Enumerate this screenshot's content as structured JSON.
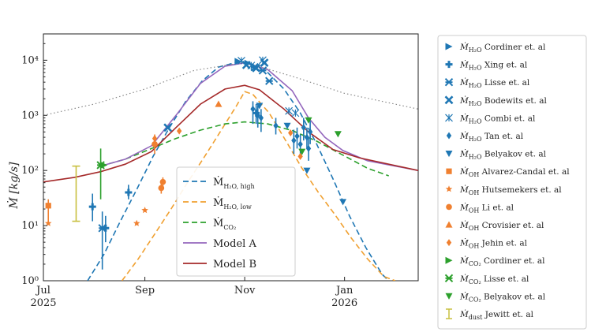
{
  "chart_data": {
    "type": "scatter",
    "title": "",
    "xlabel": "",
    "ylabel": "Ṁ [kg/s]",
    "xlim": [
      "2025-07-01",
      "2026-02-15"
    ],
    "ylim": [
      1,
      30000
    ],
    "yscale": "log",
    "x_ticks": [
      {
        "date": "2025-07-01",
        "line1": "Jul",
        "line2": "2025"
      },
      {
        "date": "2025-09-01",
        "line1": "Sep",
        "line2": ""
      },
      {
        "date": "2025-11-01",
        "line1": "Nov",
        "line2": ""
      },
      {
        "date": "2026-01-01",
        "line1": "Jan",
        "line2": "2026"
      }
    ],
    "y_ticks": [
      {
        "value": 1,
        "label": "10⁰"
      },
      {
        "value": 10,
        "label": "10¹"
      },
      {
        "value": 100,
        "label": "10²"
      },
      {
        "value": 1000,
        "label": "10³"
      },
      {
        "value": 10000,
        "label": "10⁴"
      }
    ],
    "grid": false,
    "curves": [
      {
        "name": "Ṁ H2O,high",
        "color": "#1f77b4",
        "dash": "dashed",
        "points": [
          [
            "2025-07-28",
            1
          ],
          [
            "2025-08-07",
            3
          ],
          [
            "2025-08-17",
            12
          ],
          [
            "2025-08-27",
            45
          ],
          [
            "2025-09-06",
            180
          ],
          [
            "2025-09-16",
            600
          ],
          [
            "2025-09-26",
            1800
          ],
          [
            "2025-10-06",
            4200
          ],
          [
            "2025-10-16",
            7500
          ],
          [
            "2025-10-26",
            9000
          ],
          [
            "2025-11-05",
            8500
          ],
          [
            "2025-11-15",
            6000
          ],
          [
            "2025-11-25",
            3000
          ],
          [
            "2025-12-05",
            1100
          ],
          [
            "2025-12-15",
            300
          ],
          [
            "2025-12-25",
            70
          ],
          [
            "2026-01-04",
            15
          ],
          [
            "2026-01-14",
            4
          ],
          [
            "2026-01-24",
            1.3
          ],
          [
            "2026-01-28",
            1
          ]
        ]
      },
      {
        "name": "Ṁ H2O,low",
        "color": "#f0a030",
        "dash": "dashed",
        "points": [
          [
            "2025-08-18",
            1
          ],
          [
            "2025-08-28",
            2.5
          ],
          [
            "2025-09-07",
            7
          ],
          [
            "2025-09-17",
            20
          ],
          [
            "2025-09-27",
            60
          ],
          [
            "2025-10-07",
            170
          ],
          [
            "2025-10-17",
            500
          ],
          [
            "2025-10-27",
            1500
          ],
          [
            "2025-11-01",
            2700
          ],
          [
            "2025-11-06",
            2400
          ],
          [
            "2025-11-16",
            1100
          ],
          [
            "2025-11-26",
            350
          ],
          [
            "2025-12-06",
            110
          ],
          [
            "2025-12-16",
            40
          ],
          [
            "2025-12-26",
            16
          ],
          [
            "2026-01-05",
            6
          ],
          [
            "2026-01-15",
            2.5
          ],
          [
            "2026-01-25",
            1.2
          ],
          [
            "2026-02-01",
            1
          ]
        ]
      },
      {
        "name": "Ṁ CO2",
        "color": "#2ca02c",
        "dash": "dashed",
        "points": [
          [
            "2025-08-05",
            120
          ],
          [
            "2025-08-20",
            160
          ],
          [
            "2025-09-05",
            250
          ],
          [
            "2025-09-20",
            380
          ],
          [
            "2025-10-05",
            540
          ],
          [
            "2025-10-20",
            700
          ],
          [
            "2025-11-01",
            760
          ],
          [
            "2025-11-15",
            700
          ],
          [
            "2025-11-30",
            530
          ],
          [
            "2025-12-15",
            340
          ],
          [
            "2025-12-31",
            190
          ],
          [
            "2026-01-15",
            110
          ],
          [
            "2026-01-28",
            80
          ]
        ]
      },
      {
        "name": "Model A",
        "color": "#9467bd",
        "dash": "solid",
        "points": [
          [
            "2025-08-05",
            120
          ],
          [
            "2025-08-20",
            160
          ],
          [
            "2025-09-05",
            280
          ],
          [
            "2025-09-20",
            1000
          ],
          [
            "2025-10-05",
            3800
          ],
          [
            "2025-10-20",
            7800
          ],
          [
            "2025-11-01",
            9000
          ],
          [
            "2025-11-15",
            6800
          ],
          [
            "2025-11-30",
            2800
          ],
          [
            "2025-12-10",
            900
          ],
          [
            "2025-12-20",
            400
          ],
          [
            "2025-12-31",
            230
          ],
          [
            "2026-01-15",
            150
          ],
          [
            "2026-02-15",
            100
          ]
        ]
      },
      {
        "name": "Model B",
        "color": "#a52a2a",
        "dash": "solid",
        "points": [
          [
            "2025-07-01",
            62
          ],
          [
            "2025-07-20",
            75
          ],
          [
            "2025-08-05",
            95
          ],
          [
            "2025-08-20",
            130
          ],
          [
            "2025-09-05",
            220
          ],
          [
            "2025-09-20",
            600
          ],
          [
            "2025-10-05",
            1600
          ],
          [
            "2025-10-20",
            3000
          ],
          [
            "2025-11-01",
            3500
          ],
          [
            "2025-11-10",
            2900
          ],
          [
            "2025-11-25",
            1300
          ],
          [
            "2025-12-10",
            500
          ],
          [
            "2025-12-25",
            240
          ],
          [
            "2026-01-10",
            170
          ],
          [
            "2026-02-15",
            100
          ]
        ]
      },
      {
        "name": "dotted",
        "color": "#888888",
        "dash": "dotted",
        "points": [
          [
            "2025-07-01",
            1000
          ],
          [
            "2025-08-01",
            1600
          ],
          [
            "2025-09-01",
            3000
          ],
          [
            "2025-10-01",
            6500
          ],
          [
            "2025-11-01",
            9200
          ],
          [
            "2025-12-01",
            5000
          ],
          [
            "2026-01-01",
            2500
          ],
          [
            "2026-02-15",
            1300
          ]
        ]
      }
    ],
    "legend_inside": {
      "placement": "bottom-center",
      "entries": [
        {
          "base": "Ṁ",
          "sub": "H₂O, high",
          "color": "#1f77b4",
          "dash": "dashed"
        },
        {
          "base": "Ṁ",
          "sub": "H₂O, low",
          "color": "#f0a030",
          "dash": "dashed"
        },
        {
          "base": "Ṁ",
          "sub": "CO₂",
          "color": "#2ca02c",
          "dash": "dashed"
        },
        {
          "base": "Model A",
          "sub": "",
          "color": "#9467bd",
          "dash": "solid"
        },
        {
          "base": "Model B",
          "sub": "",
          "color": "#a52a2a",
          "dash": "solid"
        }
      ]
    },
    "series": [
      {
        "name": "Cordiner et. al",
        "sub": "H₂O",
        "marker": "tri-right",
        "color": "#1f77b4",
        "points": [
          {
            "x": "2025-10-28",
            "y": 9500
          },
          {
            "x": "2025-11-03",
            "y": 8800
          }
        ]
      },
      {
        "name": "Xing et. al",
        "sub": "H₂O",
        "marker": "plus",
        "color": "#1f77b4",
        "points": [
          {
            "x": "2025-07-31",
            "y": 22,
            "lo": 12,
            "hi": 38
          },
          {
            "x": "2025-08-08",
            "y": 9,
            "lo": 5,
            "hi": 15
          },
          {
            "x": "2025-08-22",
            "y": 40,
            "lo": 30,
            "hi": 55
          },
          {
            "x": "2025-11-08",
            "y": 1100,
            "lo": 700,
            "hi": 1600
          }
        ]
      },
      {
        "name": "Lisse et. al",
        "sub": "H₂O",
        "marker": "star-x",
        "color": "#1f77b4",
        "points": [
          {
            "x": "2025-08-06",
            "y": 9,
            "lo": 1.6,
            "hi": 18
          },
          {
            "x": "2025-11-07",
            "y": 7500
          },
          {
            "x": "2025-11-12",
            "y": 6500
          },
          {
            "x": "2025-11-16",
            "y": 4200
          }
        ]
      },
      {
        "name": "Bodewits et. al",
        "sub": "H₂O",
        "marker": "x",
        "color": "#1f77b4",
        "points": [
          {
            "x": "2025-09-15",
            "y": 600
          },
          {
            "x": "2025-11-02",
            "y": 8200
          },
          {
            "x": "2025-11-08",
            "y": 7200
          },
          {
            "x": "2025-11-13",
            "y": 9000
          }
        ]
      },
      {
        "name": "Combi et. al",
        "sub": "H₂O",
        "marker": "asterisk",
        "color": "#1f77b4",
        "points": [
          {
            "x": "2025-10-30",
            "y": 9800
          },
          {
            "x": "2025-11-05",
            "y": 8000
          },
          {
            "x": "2025-11-12",
            "y": 10000
          },
          {
            "x": "2025-11-28",
            "y": 1200
          },
          {
            "x": "2025-12-02",
            "y": 1100
          }
        ]
      },
      {
        "name": "Tan et. al",
        "sub": "H₂O",
        "marker": "diamond",
        "color": "#1f77b4",
        "points": [
          {
            "x": "2025-11-06",
            "y": 1300,
            "lo": 700,
            "hi": 1800
          },
          {
            "x": "2025-11-09",
            "y": 1000,
            "lo": 600,
            "hi": 1500
          },
          {
            "x": "2025-11-11",
            "y": 900,
            "lo": 500,
            "hi": 1300
          },
          {
            "x": "2025-11-20",
            "y": 650,
            "lo": 450,
            "hi": 900
          },
          {
            "x": "2025-12-01",
            "y": 350,
            "lo": 200,
            "hi": 550
          },
          {
            "x": "2025-12-03",
            "y": 420,
            "lo": 250,
            "hi": 600
          },
          {
            "x": "2025-12-05",
            "y": 300,
            "lo": 200,
            "hi": 450
          },
          {
            "x": "2025-12-07",
            "y": 600,
            "lo": 350,
            "hi": 900
          },
          {
            "x": "2025-12-09",
            "y": 400,
            "lo": 250,
            "hi": 600
          },
          {
            "x": "2025-12-10",
            "y": 250,
            "lo": 150,
            "hi": 400
          },
          {
            "x": "2025-12-11",
            "y": 500,
            "lo": 300,
            "hi": 800
          }
        ]
      },
      {
        "name": "Belyakov et. al",
        "sub": "H₂O",
        "marker": "tri-down",
        "color": "#1f77b4",
        "points": [
          {
            "x": "2025-11-10",
            "y": 1500
          },
          {
            "x": "2025-11-27",
            "y": 650
          },
          {
            "x": "2025-12-09",
            "y": 100
          },
          {
            "x": "2025-12-31",
            "y": 27
          }
        ]
      },
      {
        "name": "Alvarez-Candal et. al",
        "sub": "OH",
        "marker": "square",
        "color": "#f08030",
        "points": [
          {
            "x": "2025-07-04",
            "y": 23,
            "lo": 12,
            "hi": 30
          }
        ]
      },
      {
        "name": "Hutsemekers et. al",
        "sub": "OH",
        "marker": "star",
        "color": "#f08030",
        "points": [
          {
            "x": "2025-07-04",
            "y": 11
          },
          {
            "x": "2025-08-27",
            "y": 11
          },
          {
            "x": "2025-09-01",
            "y": 19
          }
        ]
      },
      {
        "name": "Li et. al",
        "sub": "OH",
        "marker": "octagon",
        "color": "#f08030",
        "points": [
          {
            "x": "2025-09-07",
            "y": 300,
            "lo": 200,
            "hi": 450
          },
          {
            "x": "2025-09-11",
            "y": 48,
            "lo": 38,
            "hi": 60
          },
          {
            "x": "2025-09-12",
            "y": 62,
            "lo": 48,
            "hi": 75
          }
        ]
      },
      {
        "name": "Crovisier et. al",
        "sub": "OH",
        "marker": "triangle-up",
        "color": "#f08030",
        "points": [
          {
            "x": "2025-10-16",
            "y": 1600
          }
        ]
      },
      {
        "name": "Jehin et. al",
        "sub": "OH",
        "marker": "diamond",
        "color": "#f08030",
        "points": [
          {
            "x": "2025-09-07",
            "y": 380
          },
          {
            "x": "2025-09-22",
            "y": 520
          },
          {
            "x": "2025-11-29",
            "y": 480
          },
          {
            "x": "2025-12-05",
            "y": 180
          }
        ]
      },
      {
        "name": "Cordiner et. al",
        "sub": "CO₂",
        "marker": "tri-right",
        "color": "#2ca02c",
        "points": [
          {
            "x": "2025-08-07",
            "y": 125
          }
        ]
      },
      {
        "name": "Lisse et. al",
        "sub": "CO₂",
        "marker": "star-x",
        "color": "#2ca02c",
        "points": [
          {
            "x": "2025-08-05",
            "y": 125,
            "lo": 30,
            "hi": 250
          }
        ]
      },
      {
        "name": "Belyakov et. al",
        "sub": "CO₂",
        "marker": "tri-down",
        "color": "#2ca02c",
        "points": [
          {
            "x": "2025-12-10",
            "y": 820
          },
          {
            "x": "2025-12-28",
            "y": 460
          },
          {
            "x": "2025-12-06",
            "y": 220
          }
        ]
      },
      {
        "name": "Jewitt et. al",
        "sub": "dust",
        "marker": "errorbar",
        "color": "#c8c040",
        "points": [
          {
            "x": "2025-07-21",
            "y": 60,
            "lo": 12,
            "hi": 120
          }
        ]
      }
    ]
  }
}
